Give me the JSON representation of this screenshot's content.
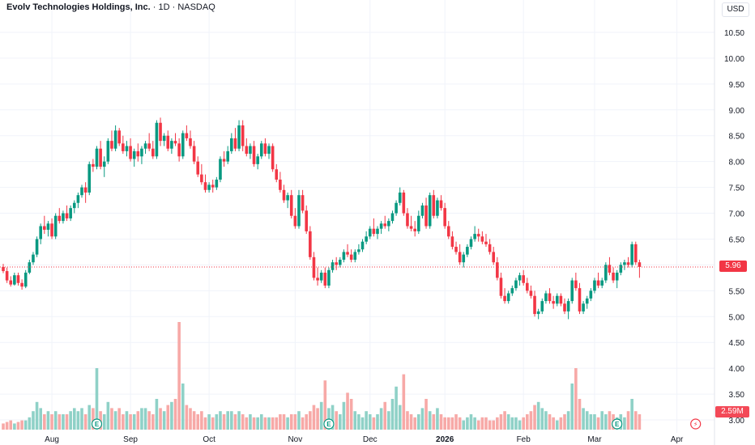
{
  "header": {
    "symbol_name": "Evolv Technologies Holdings, Inc.",
    "interval": "1D",
    "exchange": "NASDAQ",
    "separator": "·",
    "currency": "USD"
  },
  "colors": {
    "up": "#089981",
    "down": "#f23645",
    "vol_up": "#8fd1c7",
    "vol_down": "#f7a9a7",
    "grid": "#f0f3fa",
    "price_line": "#f23645"
  },
  "price_tag": "5.96",
  "volume_tag": "2.59M",
  "chart_data": {
    "type": "candlestick",
    "title": "Evolv Technologies Holdings, Inc. · 1D · NASDAQ",
    "y_axis": {
      "ticks": [
        "10.50",
        "10.00",
        "9.50",
        "9.00",
        "8.50",
        "8.00",
        "7.50",
        "7.00",
        "6.50",
        "6.00",
        "5.50",
        "5.00",
        "4.50",
        "4.00",
        "3.50",
        "3.00"
      ],
      "range": [
        2.9,
        10.7
      ]
    },
    "x_axis": {
      "labels": [
        {
          "text": "Aug",
          "bar": 13
        },
        {
          "text": "Sep",
          "bar": 34
        },
        {
          "text": "Oct",
          "bar": 55
        },
        {
          "text": "Nov",
          "bar": 78
        },
        {
          "text": "Dec",
          "bar": 98
        },
        {
          "text": "2026",
          "bar": 118,
          "bold": true
        },
        {
          "text": "Feb",
          "bar": 139
        },
        {
          "text": "Mar",
          "bar": 158
        },
        {
          "text": "Apr",
          "bar": 180
        }
      ]
    },
    "last_price": 5.96,
    "last_volume": "2.59M",
    "earnings_markers": [
      {
        "bar": 25,
        "label": "E"
      },
      {
        "bar": 87,
        "label": "E"
      },
      {
        "bar": 164,
        "label": "E"
      }
    ],
    "dividend_marker": {
      "bar": 185,
      "label": "⚡"
    },
    "bars": [
      [
        5.96,
        6.02,
        5.84,
        5.88,
        0.2
      ],
      [
        5.88,
        5.95,
        5.65,
        5.7,
        0.25
      ],
      [
        5.7,
        5.78,
        5.58,
        5.62,
        0.3
      ],
      [
        5.62,
        5.85,
        5.6,
        5.8,
        0.2
      ],
      [
        5.8,
        5.85,
        5.6,
        5.65,
        0.25
      ],
      [
        5.65,
        5.72,
        5.52,
        5.58,
        0.3
      ],
      [
        5.58,
        5.9,
        5.55,
        5.85,
        0.3
      ],
      [
        5.85,
        6.1,
        5.82,
        6.05,
        0.4
      ],
      [
        6.05,
        6.25,
        6.0,
        6.2,
        0.6
      ],
      [
        6.2,
        6.55,
        6.15,
        6.5,
        0.9
      ],
      [
        6.5,
        6.8,
        6.4,
        6.75,
        0.7
      ],
      [
        6.75,
        6.95,
        6.6,
        6.68,
        0.5
      ],
      [
        6.68,
        6.85,
        6.55,
        6.8,
        0.6
      ],
      [
        6.8,
        6.9,
        6.5,
        6.55,
        0.5
      ],
      [
        6.55,
        7.0,
        6.5,
        6.95,
        0.6
      ],
      [
        6.95,
        7.1,
        6.8,
        6.85,
        0.5
      ],
      [
        6.85,
        7.05,
        6.8,
        7.0,
        0.5
      ],
      [
        7.0,
        7.15,
        6.85,
        6.9,
        0.5
      ],
      [
        6.9,
        7.15,
        6.85,
        7.1,
        0.6
      ],
      [
        7.1,
        7.25,
        7.0,
        7.2,
        0.7
      ],
      [
        7.2,
        7.4,
        7.1,
        7.35,
        0.6
      ],
      [
        7.35,
        7.55,
        7.3,
        7.5,
        0.7
      ],
      [
        7.5,
        7.6,
        7.2,
        7.4,
        0.5
      ],
      [
        7.4,
        8.0,
        7.35,
        7.95,
        0.8
      ],
      [
        7.95,
        8.05,
        7.8,
        7.9,
        0.7
      ],
      [
        7.9,
        8.3,
        7.85,
        8.25,
        2.0
      ],
      [
        8.25,
        8.4,
        7.85,
        7.9,
        0.6
      ],
      [
        7.9,
        8.1,
        7.7,
        8.0,
        0.5
      ],
      [
        8.0,
        8.45,
        7.95,
        8.4,
        0.9
      ],
      [
        8.4,
        8.6,
        8.2,
        8.25,
        0.7
      ],
      [
        8.25,
        8.7,
        8.2,
        8.6,
        0.6
      ],
      [
        8.6,
        8.65,
        8.3,
        8.35,
        0.7
      ],
      [
        8.35,
        8.5,
        8.15,
        8.2,
        0.5
      ],
      [
        8.2,
        8.4,
        8.1,
        8.3,
        0.6
      ],
      [
        8.3,
        8.45,
        8.0,
        8.05,
        0.5
      ],
      [
        8.05,
        8.25,
        7.9,
        8.2,
        0.5
      ],
      [
        8.2,
        8.35,
        8.0,
        8.1,
        0.6
      ],
      [
        8.1,
        8.3,
        7.95,
        8.25,
        0.7
      ],
      [
        8.25,
        8.4,
        8.15,
        8.35,
        0.7
      ],
      [
        8.35,
        8.55,
        8.2,
        8.25,
        0.6
      ],
      [
        8.25,
        8.4,
        8.05,
        8.1,
        0.5
      ],
      [
        8.1,
        8.8,
        8.05,
        8.75,
        1.0
      ],
      [
        8.75,
        8.85,
        8.3,
        8.4,
        0.7
      ],
      [
        8.4,
        8.55,
        8.3,
        8.5,
        0.6
      ],
      [
        8.5,
        8.6,
        8.2,
        8.25,
        0.8
      ],
      [
        8.25,
        8.45,
        8.15,
        8.4,
        0.9
      ],
      [
        8.4,
        8.55,
        8.3,
        8.35,
        1.0
      ],
      [
        8.35,
        8.45,
        8.0,
        8.1,
        3.5
      ],
      [
        8.1,
        8.6,
        8.05,
        8.55,
        1.5
      ],
      [
        8.55,
        8.7,
        8.4,
        8.45,
        0.8
      ],
      [
        8.45,
        8.6,
        8.25,
        8.3,
        0.7
      ],
      [
        8.3,
        8.4,
        7.95,
        8.0,
        0.6
      ],
      [
        8.0,
        8.1,
        7.7,
        7.75,
        0.5
      ],
      [
        7.75,
        7.95,
        7.55,
        7.6,
        0.6
      ],
      [
        7.6,
        7.75,
        7.4,
        7.45,
        0.4
      ],
      [
        7.45,
        7.6,
        7.4,
        7.55,
        0.5
      ],
      [
        7.55,
        7.65,
        7.4,
        7.5,
        0.4
      ],
      [
        7.5,
        7.7,
        7.45,
        7.65,
        0.5
      ],
      [
        7.65,
        8.1,
        7.6,
        8.05,
        0.6
      ],
      [
        8.05,
        8.2,
        7.9,
        8.0,
        0.5
      ],
      [
        8.0,
        8.3,
        7.95,
        8.2,
        0.6
      ],
      [
        8.2,
        8.55,
        8.15,
        8.45,
        0.6
      ],
      [
        8.45,
        8.65,
        8.2,
        8.25,
        0.5
      ],
      [
        8.25,
        8.8,
        8.2,
        8.7,
        0.6
      ],
      [
        8.7,
        8.8,
        8.2,
        8.3,
        0.5
      ],
      [
        8.3,
        8.45,
        8.1,
        8.15,
        0.4
      ],
      [
        8.15,
        8.35,
        8.05,
        8.3,
        0.5
      ],
      [
        8.3,
        8.4,
        7.9,
        7.95,
        0.4
      ],
      [
        7.95,
        8.15,
        7.85,
        8.1,
        0.4
      ],
      [
        8.1,
        8.4,
        8.05,
        8.35,
        0.5
      ],
      [
        8.35,
        8.45,
        8.1,
        8.15,
        0.4
      ],
      [
        8.15,
        8.35,
        8.05,
        8.3,
        0.4
      ],
      [
        8.3,
        8.35,
        7.8,
        7.85,
        0.4
      ],
      [
        7.85,
        7.95,
        7.6,
        7.65,
        0.4
      ],
      [
        7.65,
        7.8,
        7.4,
        7.45,
        0.5
      ],
      [
        7.45,
        7.55,
        7.2,
        7.25,
        0.5
      ],
      [
        7.25,
        7.4,
        7.1,
        7.35,
        0.4
      ],
      [
        7.35,
        7.45,
        6.9,
        6.95,
        0.5
      ],
      [
        6.95,
        7.1,
        6.7,
        6.75,
        0.5
      ],
      [
        6.75,
        7.45,
        6.7,
        7.35,
        0.6
      ],
      [
        7.35,
        7.45,
        7.0,
        7.05,
        0.4
      ],
      [
        7.05,
        7.15,
        6.6,
        6.65,
        0.5
      ],
      [
        6.65,
        6.75,
        6.1,
        6.15,
        0.6
      ],
      [
        6.15,
        6.25,
        5.7,
        5.75,
        0.8
      ],
      [
        5.75,
        5.95,
        5.6,
        5.7,
        0.7
      ],
      [
        5.7,
        5.9,
        5.65,
        5.85,
        0.9
      ],
      [
        5.85,
        5.95,
        5.55,
        5.6,
        1.6
      ],
      [
        5.6,
        5.95,
        5.55,
        5.9,
        0.7
      ],
      [
        5.9,
        6.1,
        5.85,
        6.05,
        0.8
      ],
      [
        6.05,
        6.15,
        5.9,
        6.0,
        0.6
      ],
      [
        6.0,
        6.15,
        5.95,
        6.1,
        0.5
      ],
      [
        6.1,
        6.3,
        6.05,
        6.25,
        0.9
      ],
      [
        6.25,
        6.4,
        6.15,
        6.2,
        1.2
      ],
      [
        6.2,
        6.3,
        6.05,
        6.1,
        1.0
      ],
      [
        6.1,
        6.3,
        6.05,
        6.25,
        0.6
      ],
      [
        6.25,
        6.4,
        6.2,
        6.3,
        0.5
      ],
      [
        6.3,
        6.5,
        6.25,
        6.45,
        0.4
      ],
      [
        6.45,
        6.65,
        6.4,
        6.55,
        0.6
      ],
      [
        6.55,
        6.75,
        6.5,
        6.7,
        0.5
      ],
      [
        6.7,
        6.9,
        6.55,
        6.6,
        0.4
      ],
      [
        6.6,
        6.75,
        6.5,
        6.7,
        0.5
      ],
      [
        6.7,
        6.85,
        6.6,
        6.8,
        0.7
      ],
      [
        6.8,
        6.95,
        6.7,
        6.75,
        0.9
      ],
      [
        6.75,
        6.9,
        6.65,
        6.85,
        0.6
      ],
      [
        6.85,
        7.05,
        6.8,
        7.0,
        1.0
      ],
      [
        7.0,
        7.25,
        6.95,
        7.2,
        1.4
      ],
      [
        7.2,
        7.5,
        7.15,
        7.4,
        0.8
      ],
      [
        7.4,
        7.45,
        6.95,
        7.0,
        1.8
      ],
      [
        7.0,
        7.1,
        6.7,
        6.75,
        0.6
      ],
      [
        6.75,
        6.95,
        6.65,
        6.7,
        0.5
      ],
      [
        6.7,
        6.85,
        6.55,
        6.65,
        0.4
      ],
      [
        6.65,
        7.05,
        6.6,
        6.95,
        0.5
      ],
      [
        6.95,
        7.2,
        6.9,
        7.15,
        0.7
      ],
      [
        7.15,
        7.3,
        6.7,
        6.75,
        1.0
      ],
      [
        6.75,
        7.4,
        6.7,
        7.35,
        0.6
      ],
      [
        7.35,
        7.45,
        6.9,
        6.95,
        0.5
      ],
      [
        6.95,
        7.3,
        6.9,
        7.25,
        0.7
      ],
      [
        7.25,
        7.35,
        7.05,
        7.1,
        0.5
      ],
      [
        7.1,
        7.2,
        6.7,
        6.75,
        0.4
      ],
      [
        6.75,
        6.85,
        6.5,
        6.55,
        0.4
      ],
      [
        6.55,
        6.65,
        6.3,
        6.35,
        0.4
      ],
      [
        6.35,
        6.45,
        6.2,
        6.25,
        0.5
      ],
      [
        6.25,
        6.4,
        6.0,
        6.05,
        0.4
      ],
      [
        6.05,
        6.25,
        5.95,
        6.2,
        0.3
      ],
      [
        6.2,
        6.4,
        6.15,
        6.35,
        0.4
      ],
      [
        6.35,
        6.55,
        6.3,
        6.5,
        0.5
      ],
      [
        6.5,
        6.75,
        6.45,
        6.6,
        0.4
      ],
      [
        6.6,
        6.7,
        6.45,
        6.55,
        0.3
      ],
      [
        6.55,
        6.65,
        6.4,
        6.45,
        0.4
      ],
      [
        6.45,
        6.6,
        6.35,
        6.4,
        0.4
      ],
      [
        6.4,
        6.5,
        6.2,
        6.25,
        0.3
      ],
      [
        6.25,
        6.35,
        6.0,
        6.05,
        0.3
      ],
      [
        6.05,
        6.15,
        5.7,
        5.75,
        0.4
      ],
      [
        5.75,
        5.85,
        5.35,
        5.4,
        0.5
      ],
      [
        5.4,
        5.55,
        5.25,
        5.3,
        0.6
      ],
      [
        5.3,
        5.5,
        5.25,
        5.45,
        0.5
      ],
      [
        5.45,
        5.6,
        5.4,
        5.55,
        0.4
      ],
      [
        5.55,
        5.75,
        5.5,
        5.7,
        0.4
      ],
      [
        5.7,
        5.85,
        5.6,
        5.8,
        0.3
      ],
      [
        5.8,
        5.9,
        5.6,
        5.65,
        0.4
      ],
      [
        5.65,
        5.75,
        5.45,
        5.5,
        0.5
      ],
      [
        5.5,
        5.6,
        5.35,
        5.4,
        0.6
      ],
      [
        5.4,
        5.5,
        5.0,
        5.05,
        0.8
      ],
      [
        5.05,
        5.15,
        4.95,
        5.1,
        0.9
      ],
      [
        5.1,
        5.35,
        5.05,
        5.3,
        0.7
      ],
      [
        5.3,
        5.5,
        5.25,
        5.45,
        0.6
      ],
      [
        5.45,
        5.55,
        5.25,
        5.3,
        0.5
      ],
      [
        5.3,
        5.4,
        5.15,
        5.25,
        0.4
      ],
      [
        5.25,
        5.45,
        5.2,
        5.4,
        0.3
      ],
      [
        5.4,
        5.45,
        5.2,
        5.25,
        0.4
      ],
      [
        5.25,
        5.35,
        5.05,
        5.1,
        0.5
      ],
      [
        5.1,
        5.35,
        4.95,
        5.3,
        0.6
      ],
      [
        5.3,
        5.75,
        5.25,
        5.7,
        1.5
      ],
      [
        5.7,
        5.85,
        5.5,
        5.55,
        2.0
      ],
      [
        5.55,
        5.65,
        5.05,
        5.1,
        1.0
      ],
      [
        5.1,
        5.3,
        5.05,
        5.25,
        0.7
      ],
      [
        5.25,
        5.4,
        5.15,
        5.35,
        0.6
      ],
      [
        5.35,
        5.55,
        5.3,
        5.5,
        0.5
      ],
      [
        5.5,
        5.75,
        5.45,
        5.7,
        0.5
      ],
      [
        5.7,
        5.85,
        5.55,
        5.6,
        0.4
      ],
      [
        5.6,
        5.75,
        5.55,
        5.7,
        0.6
      ],
      [
        5.7,
        6.05,
        5.65,
        6.0,
        0.5
      ],
      [
        6.0,
        6.15,
        5.8,
        5.85,
        0.6
      ],
      [
        5.85,
        5.95,
        5.65,
        5.7,
        0.5
      ],
      [
        5.7,
        5.9,
        5.55,
        5.85,
        0.4
      ],
      [
        5.85,
        6.05,
        5.8,
        6.0,
        0.5
      ],
      [
        6.0,
        6.1,
        5.9,
        6.05,
        0.4
      ],
      [
        6.05,
        6.15,
        5.95,
        6.0,
        0.6
      ],
      [
        6.0,
        6.45,
        5.95,
        6.4,
        1.0
      ],
      [
        6.4,
        6.45,
        6.0,
        6.05,
        0.6
      ],
      [
        6.05,
        6.1,
        5.75,
        5.96,
        0.5
      ]
    ]
  }
}
